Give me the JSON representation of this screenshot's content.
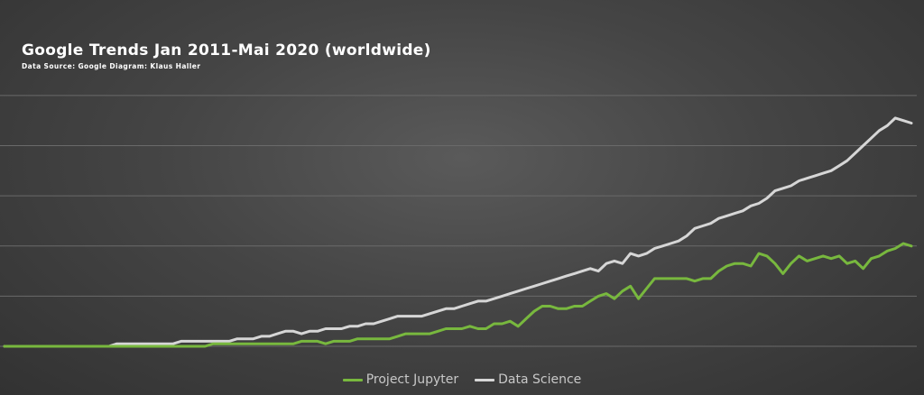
{
  "chart_data": {
    "type": "line",
    "title": "Google Trends Jan 2011-Mai 2020 (worldwide)",
    "subtitle": "Data Source: Google Diagram: Klaus Haller",
    "xlabel": "",
    "ylabel": "",
    "ylim": [
      0,
      105
    ],
    "grid": "horizontal",
    "gridlines": [
      0,
      20,
      40,
      60,
      80,
      100
    ],
    "legend_position": "bottom-center",
    "colors": {
      "background": "#3c3c3c",
      "grid": "#6a6a6a",
      "project_jupyter": "#78b83e",
      "data_science": "#d6d6d6"
    },
    "x": [
      0,
      1,
      2,
      3,
      4,
      5,
      6,
      7,
      8,
      9,
      10,
      11,
      12,
      13,
      14,
      15,
      16,
      17,
      18,
      19,
      20,
      21,
      22,
      23,
      24,
      25,
      26,
      27,
      28,
      29,
      30,
      31,
      32,
      33,
      34,
      35,
      36,
      37,
      38,
      39,
      40,
      41,
      42,
      43,
      44,
      45,
      46,
      47,
      48,
      49,
      50,
      51,
      52,
      53,
      54,
      55,
      56,
      57,
      58,
      59,
      60,
      61,
      62,
      63,
      64,
      65,
      66,
      67,
      68,
      69,
      70,
      71,
      72,
      73,
      74,
      75,
      76,
      77,
      78,
      79,
      80,
      81,
      82,
      83,
      84,
      85,
      86,
      87,
      88,
      89,
      90,
      91,
      92,
      93,
      94,
      95,
      96,
      97,
      98,
      99,
      100,
      101,
      102,
      103,
      104,
      105,
      106,
      107,
      108,
      109,
      110,
      111,
      112,
      113
    ],
    "series": [
      {
        "name": "Project Jupyter",
        "values": [
          0,
          0,
          0,
          0,
          0,
          0,
          0,
          0,
          0,
          0,
          0,
          0,
          0,
          0,
          0,
          0,
          0,
          0,
          0,
          0,
          0,
          0,
          0,
          0,
          0,
          0,
          1,
          1,
          1,
          1,
          1,
          1,
          1,
          1,
          1,
          1,
          1,
          2,
          2,
          2,
          1,
          2,
          2,
          2,
          3,
          3,
          3,
          3,
          3,
          4,
          5,
          5,
          5,
          5,
          6,
          7,
          7,
          7,
          8,
          7,
          7,
          9,
          9,
          10,
          8,
          11,
          14,
          16,
          16,
          15,
          15,
          16,
          16,
          18,
          20,
          21,
          19,
          22,
          24,
          19,
          23,
          27,
          27,
          27,
          27,
          27,
          26,
          27,
          27,
          30,
          32,
          33,
          33,
          32,
          37,
          36,
          33,
          29,
          33,
          36,
          34,
          35,
          36,
          35,
          36,
          33,
          34,
          31,
          35,
          36,
          38,
          39,
          41,
          40
        ]
      },
      {
        "name": "Data Science",
        "values": [
          0,
          0,
          0,
          0,
          0,
          0,
          0,
          0,
          0,
          0,
          0,
          0,
          0,
          0,
          1,
          1,
          1,
          1,
          1,
          1,
          1,
          1,
          2,
          2,
          2,
          2,
          2,
          2,
          2,
          3,
          3,
          3,
          4,
          4,
          5,
          6,
          6,
          5,
          6,
          6,
          7,
          7,
          7,
          8,
          8,
          9,
          9,
          10,
          11,
          12,
          12,
          12,
          12,
          13,
          14,
          15,
          15,
          16,
          17,
          18,
          18,
          19,
          20,
          21,
          22,
          23,
          24,
          25,
          26,
          27,
          28,
          29,
          30,
          31,
          30,
          33,
          34,
          33,
          37,
          36,
          37,
          39,
          40,
          41,
          42,
          44,
          47,
          48,
          49,
          51,
          52,
          53,
          54,
          56,
          57,
          59,
          62,
          63,
          64,
          66,
          67,
          68,
          69,
          70,
          72,
          74,
          77,
          80,
          83,
          86,
          88,
          91,
          90,
          89
        ]
      }
    ]
  },
  "title": "Google Trends Jan 2011-Mai 2020 (worldwide)",
  "subtitle": "Data Source: Google Diagram: Klaus Haller",
  "legend": [
    {
      "label": "Project Jupyter",
      "color": "#78b83e"
    },
    {
      "label": "Data Science",
      "color": "#d6d6d6"
    }
  ]
}
